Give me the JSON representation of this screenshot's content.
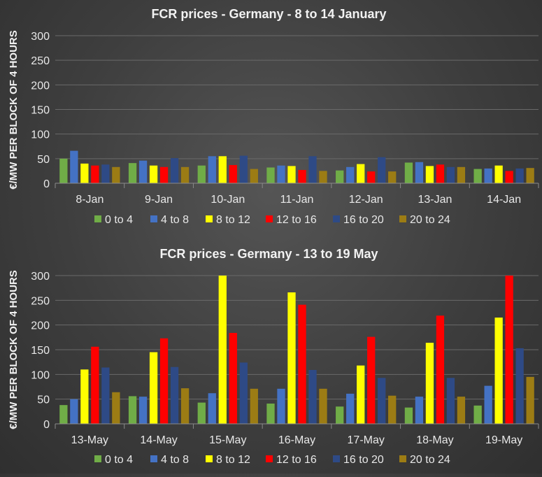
{
  "chart_data": [
    {
      "type": "bar",
      "title": "FCR prices - Germany - 8 to 14 January",
      "ylabel": "€/MW PER BLOCK OF 4 HOURS",
      "ylim": [
        0,
        300
      ],
      "yticks": [
        0,
        50,
        100,
        150,
        200,
        250,
        300
      ],
      "grid": true,
      "legend": "bottom",
      "categories": [
        "8-Jan",
        "9-Jan",
        "10-Jan",
        "11-Jan",
        "12-Jan",
        "13-Jan",
        "14-Jan"
      ],
      "series": [
        {
          "name": "0 to 4",
          "color": "#70ad47",
          "values": [
            50,
            41,
            36,
            32,
            26,
            42,
            29
          ]
        },
        {
          "name": "4 to 8",
          "color": "#4472c4",
          "values": [
            66,
            46,
            55,
            36,
            33,
            43,
            30
          ]
        },
        {
          "name": "8 to 12",
          "color": "#ffff00",
          "values": [
            40,
            36,
            55,
            35,
            39,
            35,
            36
          ]
        },
        {
          "name": "12 to 16",
          "color": "#ff0000",
          "values": [
            36,
            33,
            37,
            27,
            24,
            38,
            25
          ]
        },
        {
          "name": "16 to 20",
          "color": "#2e4a86",
          "values": [
            38,
            51,
            56,
            55,
            53,
            33,
            30
          ]
        },
        {
          "name": "20 to 24",
          "color": "#9c7c14",
          "values": [
            33,
            33,
            29,
            25,
            24,
            33,
            31
          ]
        }
      ]
    },
    {
      "type": "bar",
      "title": "FCR prices - Germany - 13 to 19 May",
      "ylabel": "€/MW PER BLOCK OF 4 HOURS",
      "ylim": [
        0,
        300
      ],
      "yticks": [
        0,
        50,
        100,
        150,
        200,
        250,
        300
      ],
      "grid": true,
      "legend": "bottom",
      "categories": [
        "13-May",
        "14-May",
        "15-May",
        "16-May",
        "17-May",
        "18-May",
        "19-May"
      ],
      "series": [
        {
          "name": "0 to 4",
          "color": "#70ad47",
          "values": [
            38,
            56,
            43,
            41,
            35,
            33,
            37
          ]
        },
        {
          "name": "4 to 8",
          "color": "#4472c4",
          "values": [
            50,
            55,
            62,
            71,
            61,
            55,
            77
          ]
        },
        {
          "name": "8 to 12",
          "color": "#ffff00",
          "values": [
            110,
            145,
            300,
            266,
            118,
            164,
            215
          ]
        },
        {
          "name": "12 to 16",
          "color": "#ff0000",
          "values": [
            156,
            173,
            184,
            241,
            176,
            219,
            300
          ]
        },
        {
          "name": "16 to 20",
          "color": "#2e4a86",
          "values": [
            114,
            115,
            124,
            109,
            93,
            93,
            153
          ]
        },
        {
          "name": "20 to 24",
          "color": "#9c7c14",
          "values": [
            64,
            72,
            71,
            71,
            57,
            55,
            95
          ]
        }
      ]
    }
  ]
}
